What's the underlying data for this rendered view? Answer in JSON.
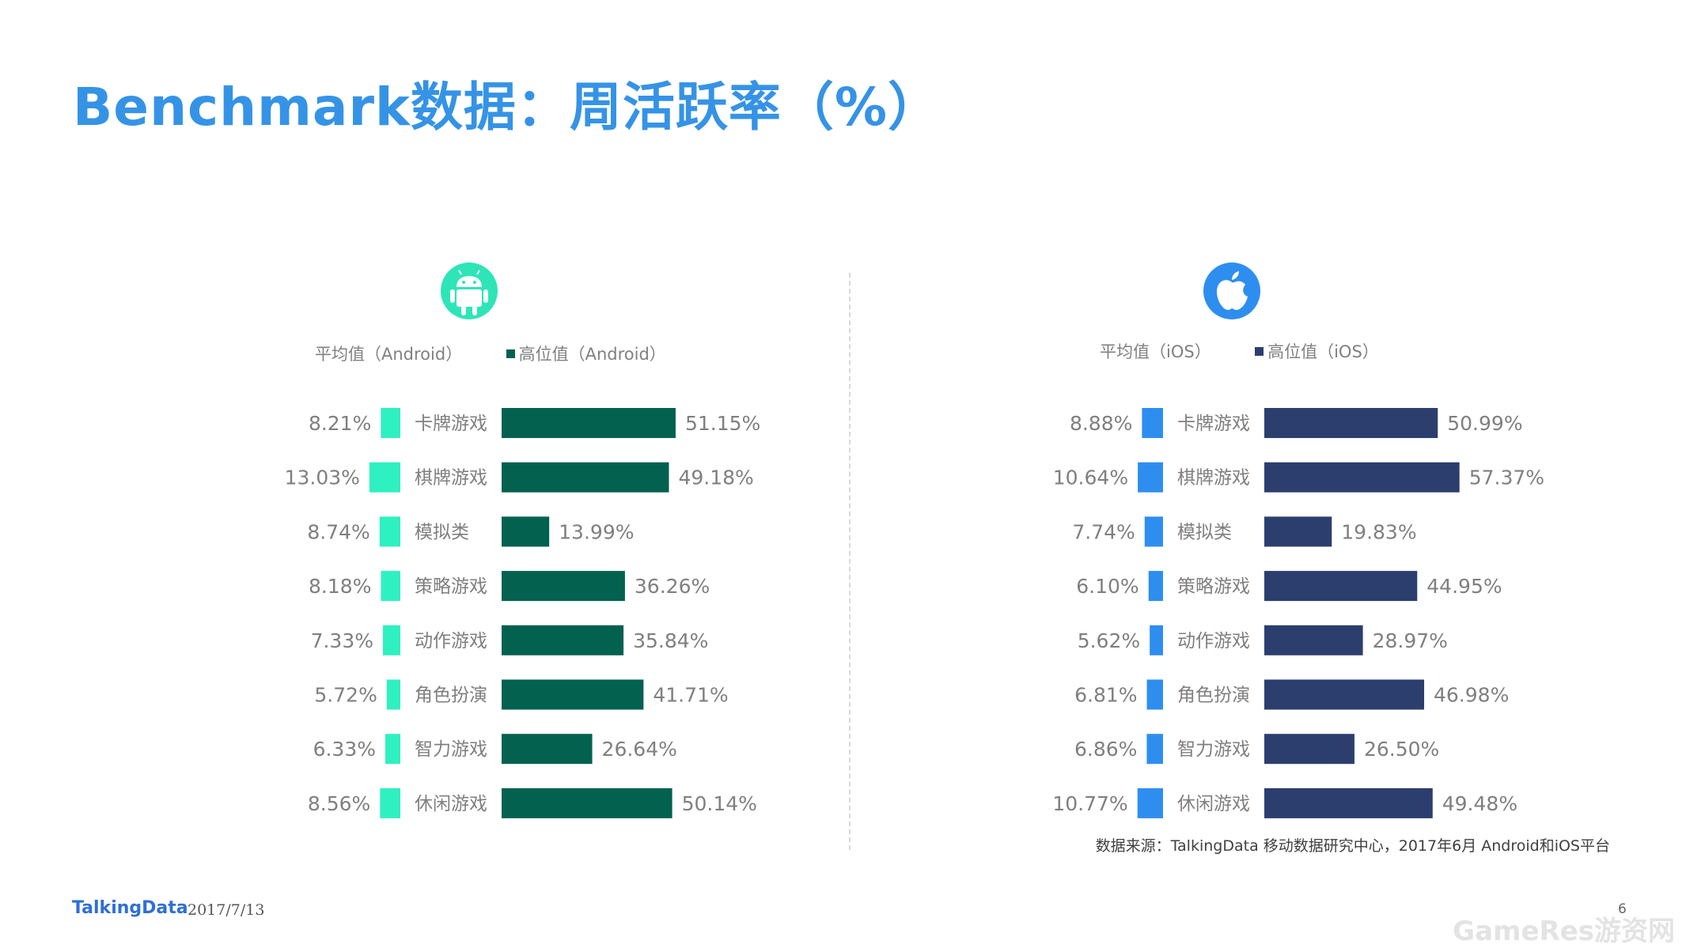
{
  "title": "Benchmark数据：周活跃率（%）",
  "chart_data": [
    {
      "type": "bar",
      "platform_icon": "android-icon",
      "categories": [
        "卡牌游戏",
        "棋牌游戏",
        "模拟类",
        "策略游戏",
        "动作游戏",
        "角色扮演",
        "智力游戏",
        "休闲游戏"
      ],
      "series": [
        {
          "name": "平均值（Android）",
          "values": [
            8.21,
            13.03,
            8.74,
            8.18,
            7.33,
            5.72,
            6.33,
            8.56
          ],
          "labels": [
            "8.21%",
            "13.03%",
            "8.74%",
            "8.18%",
            "7.33%",
            "5.72%",
            "6.33%",
            "8.56%"
          ],
          "color": "#2ff0c0"
        },
        {
          "name": "高位值（Android）",
          "values": [
            51.15,
            49.18,
            13.99,
            36.26,
            35.84,
            41.71,
            26.64,
            50.14
          ],
          "labels": [
            "51.15%",
            "49.18%",
            "13.99%",
            "36.26%",
            "35.84%",
            "41.71%",
            "26.64%",
            "50.14%"
          ],
          "color": "#03614f"
        }
      ]
    },
    {
      "type": "bar",
      "platform_icon": "apple-icon",
      "categories": [
        "卡牌游戏",
        "棋牌游戏",
        "模拟类",
        "策略游戏",
        "动作游戏",
        "角色扮演",
        "智力游戏",
        "休闲游戏"
      ],
      "series": [
        {
          "name": "平均值（iOS）",
          "values": [
            8.88,
            10.64,
            7.74,
            6.1,
            5.62,
            6.81,
            6.86,
            10.77
          ],
          "labels": [
            "8.88%",
            "10.64%",
            "7.74%",
            "6.10%",
            "5.62%",
            "6.81%",
            "6.86%",
            "10.77%"
          ],
          "color": "#2e8ef0"
        },
        {
          "name": "高位值（iOS）",
          "values": [
            50.99,
            57.37,
            19.83,
            44.95,
            28.97,
            46.98,
            26.5,
            49.48
          ],
          "labels": [
            "50.99%",
            "57.37%",
            "19.83%",
            "44.95%",
            "28.97%",
            "46.98%",
            "26.50%",
            "49.48%"
          ],
          "color": "#2c3e6e"
        }
      ]
    }
  ],
  "source": "数据来源：TalkingData 移动数据研究中心，2017年6月 Android和iOS平台",
  "footer": {
    "brand": "TalkingData",
    "date": "2017/7/13",
    "page": "6",
    "watermark": "GameRes游资网"
  }
}
